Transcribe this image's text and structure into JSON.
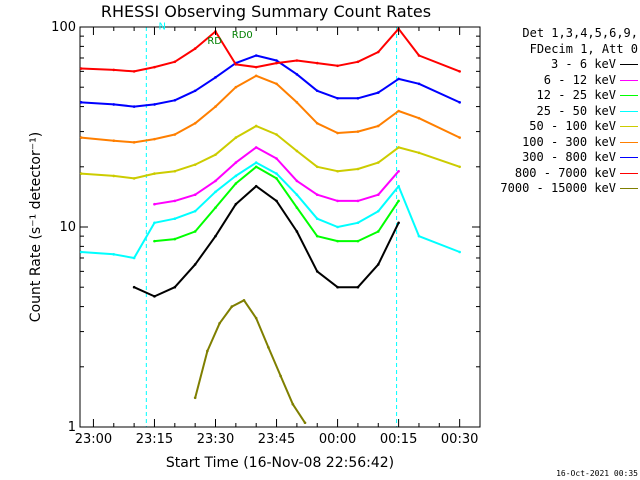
{
  "chart_data": {
    "type": "line",
    "title": "RHESSI Observing Summary Count Rates",
    "xlabel": "Start Time (16-Nov-08 22:56:42)",
    "ylabel": "Count Rate (s⁻¹ detector⁻¹)",
    "y_scale": "log",
    "ylim": [
      1,
      100
    ],
    "y_ticks": [
      {
        "value": 1,
        "label": "1"
      },
      {
        "value": 10,
        "label": "10"
      },
      {
        "value": 100,
        "label": "100"
      }
    ],
    "xlim": [
      "22:56:42",
      "00:35:00"
    ],
    "x_ticks": [
      "23:00",
      "23:15",
      "23:30",
      "23:45",
      "00:00",
      "00:15",
      "00:30"
    ],
    "grid": false,
    "legend_position": "right",
    "legend_header": [
      "Det 1,3,4,5,6,9,",
      "FDecim 1, Att 0"
    ],
    "annotations": [
      {
        "text": "N",
        "x": "23:16",
        "y": 97,
        "color": "#00ffff"
      },
      {
        "text": "RD",
        "x": "23:28",
        "y": 82,
        "color": "#007f00"
      },
      {
        "text": "RD0",
        "x": "23:34",
        "y": 88,
        "color": "#007f00"
      }
    ],
    "night_intervals": [
      [
        "22:56:42",
        "23:13:00"
      ],
      [
        "00:14:30",
        "00:35:00"
      ]
    ],
    "series": [
      {
        "name": "3 - 6 keV",
        "color": "#000000",
        "x": [
          "23:10",
          "23:15",
          "23:20",
          "23:25",
          "23:30",
          "23:35",
          "23:40",
          "23:45",
          "23:50",
          "23:55",
          "00:00",
          "00:05",
          "00:10",
          "00:15"
        ],
        "values": [
          5.0,
          4.5,
          5.0,
          6.5,
          9.0,
          13.0,
          16.0,
          13.5,
          9.5,
          6.0,
          5.0,
          5.0,
          6.5,
          10.5
        ]
      },
      {
        "name": "6 - 12 keV",
        "color": "#ff00ff",
        "x": [
          "23:15",
          "23:20",
          "23:25",
          "23:30",
          "23:35",
          "23:40",
          "23:45",
          "23:50",
          "23:55",
          "00:00",
          "00:05",
          "00:10",
          "00:15"
        ],
        "values": [
          13.0,
          13.5,
          14.5,
          17.0,
          21.0,
          25.0,
          22.0,
          17.0,
          14.5,
          13.5,
          13.5,
          14.5,
          19.0
        ]
      },
      {
        "name": "12 - 25 keV",
        "color": "#00ff00",
        "x": [
          "23:15",
          "23:20",
          "23:25",
          "23:30",
          "23:35",
          "23:40",
          "23:45",
          "23:50",
          "23:55",
          "00:00",
          "00:05",
          "00:10",
          "00:15"
        ],
        "values": [
          8.5,
          8.7,
          9.5,
          12.5,
          16.5,
          20.0,
          17.5,
          12.5,
          9.0,
          8.5,
          8.5,
          9.5,
          13.5
        ]
      },
      {
        "name": "25 - 50 keV",
        "color": "#00ffff",
        "x": [
          "22:57",
          "23:05",
          "23:10",
          "23:15",
          "23:20",
          "23:25",
          "23:30",
          "23:35",
          "23:40",
          "23:45",
          "23:50",
          "23:55",
          "00:00",
          "00:05",
          "00:10",
          "00:15",
          "00:20",
          "00:30"
        ],
        "values": [
          7.5,
          7.3,
          7.0,
          10.5,
          11.0,
          12.0,
          15.0,
          18.0,
          21.0,
          18.5,
          14.5,
          11.0,
          10.0,
          10.5,
          12.0,
          16.0,
          9.0,
          7.5
        ]
      },
      {
        "name": "50 - 100 keV",
        "color": "#cccc00",
        "x": [
          "22:57",
          "23:05",
          "23:10",
          "23:15",
          "23:20",
          "23:25",
          "23:30",
          "23:35",
          "23:40",
          "23:45",
          "23:50",
          "23:55",
          "00:00",
          "00:05",
          "00:10",
          "00:15",
          "00:20",
          "00:30"
        ],
        "values": [
          18.5,
          18.0,
          17.5,
          18.5,
          19.0,
          20.5,
          23.0,
          28.0,
          32.0,
          29.0,
          24.0,
          20.0,
          19.0,
          19.5,
          21.0,
          25.0,
          23.5,
          20.0
        ]
      },
      {
        "name": "100 - 300 keV",
        "color": "#ff7f00",
        "x": [
          "22:57",
          "23:05",
          "23:10",
          "23:15",
          "23:20",
          "23:25",
          "23:30",
          "23:35",
          "23:40",
          "23:45",
          "23:50",
          "23:55",
          "00:00",
          "00:05",
          "00:10",
          "00:15",
          "00:20",
          "00:30"
        ],
        "values": [
          28.0,
          27.0,
          26.5,
          27.5,
          29.0,
          33.0,
          40.0,
          50.0,
          57.0,
          52.0,
          42.0,
          33.0,
          29.5,
          30.0,
          32.0,
          38.0,
          35.0,
          28.0
        ]
      },
      {
        "name": "300 - 800 keV",
        "color": "#0000ff",
        "x": [
          "22:57",
          "23:05",
          "23:10",
          "23:15",
          "23:20",
          "23:25",
          "23:30",
          "23:35",
          "23:40",
          "23:45",
          "23:50",
          "23:55",
          "00:00",
          "00:05",
          "00:10",
          "00:15",
          "00:20",
          "00:30"
        ],
        "values": [
          42.0,
          41.0,
          40.0,
          41.0,
          43.0,
          48.0,
          56.0,
          66.0,
          72.0,
          68.0,
          58.0,
          48.0,
          44.0,
          44.0,
          47.0,
          55.0,
          52.0,
          42.0
        ]
      },
      {
        "name": "800 - 7000 keV",
        "color": "#ff0000",
        "x": [
          "22:57",
          "23:05",
          "23:10",
          "23:15",
          "23:20",
          "23:25",
          "23:30",
          "23:35",
          "23:40",
          "23:45",
          "23:50",
          "23:55",
          "00:00",
          "00:05",
          "00:10",
          "00:15",
          "00:20",
          "00:30"
        ],
        "values": [
          62.0,
          61.0,
          60.0,
          63.0,
          67.0,
          78.0,
          95.0,
          65.0,
          63.0,
          66.0,
          68.0,
          66.0,
          64.0,
          67.0,
          75.0,
          98.0,
          72.0,
          60.0
        ]
      },
      {
        "name": "7000 - 15000 keV",
        "color": "#7f7f00",
        "x": [
          "23:25",
          "23:28",
          "23:31",
          "23:34",
          "23:37",
          "23:40",
          "23:43",
          "23:46",
          "23:49",
          "23:52"
        ],
        "values": [
          1.4,
          2.4,
          3.3,
          4.0,
          4.3,
          3.5,
          2.5,
          1.8,
          1.3,
          1.05
        ]
      }
    ],
    "footer": "16-Oct-2021 00:35"
  }
}
